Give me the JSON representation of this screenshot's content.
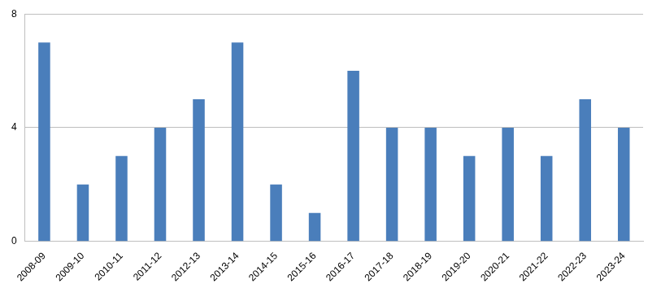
{
  "chart_data": {
    "type": "bar",
    "categories": [
      "2008-09",
      "2009-10",
      "2010-11",
      "2011-12",
      "2012-13",
      "2013-14",
      "2014-15",
      "2015-16",
      "2016-17",
      "2017-18",
      "2018-19",
      "2019-20",
      "2020-21",
      "2021-22",
      "2022-23",
      "2023-24"
    ],
    "values": [
      7,
      2,
      3,
      4,
      5,
      7,
      2,
      1,
      6,
      4,
      4,
      3,
      4,
      3,
      5,
      4
    ],
    "color": "#4a7ebb",
    "ylim": [
      0,
      8
    ],
    "yticks": [
      0,
      4,
      8
    ],
    "grid": true
  }
}
